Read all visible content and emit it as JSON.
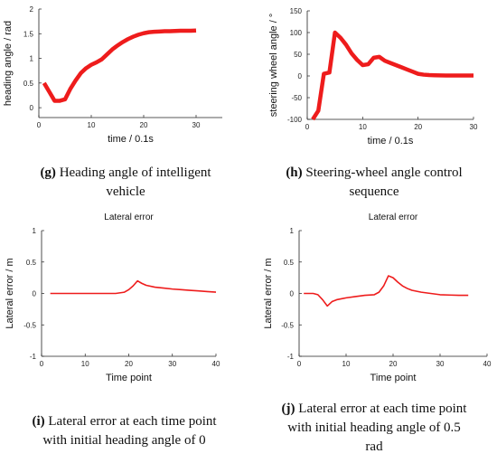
{
  "chart_data": [
    {
      "type": "line",
      "xlabel": "time / 0.1s",
      "ylabel": "heading angle / rad",
      "xlim": [
        0,
        35
      ],
      "ylim": [
        -0.2,
        2
      ],
      "xticks": [
        0,
        10,
        20,
        30
      ],
      "yticks": [
        0,
        0.5,
        1,
        1.5,
        2
      ],
      "grid": false,
      "color": "#ee1c1c",
      "x": [
        1,
        2,
        3,
        4,
        5,
        6,
        7,
        8,
        9,
        10,
        11,
        12,
        13,
        14,
        15,
        16,
        17,
        18,
        19,
        20,
        21,
        22,
        23,
        24,
        25,
        26,
        27,
        28,
        29,
        30
      ],
      "y": [
        0.5,
        0.32,
        0.14,
        0.14,
        0.17,
        0.38,
        0.55,
        0.7,
        0.8,
        0.87,
        0.92,
        0.98,
        1.08,
        1.18,
        1.26,
        1.33,
        1.39,
        1.44,
        1.48,
        1.51,
        1.53,
        1.54,
        1.545,
        1.55,
        1.55,
        1.555,
        1.56,
        1.56,
        1.56,
        1.565
      ]
    },
    {
      "type": "line",
      "xlabel": "time / 0.1s",
      "ylabel": "steering wheel angle / °",
      "xlim": [
        0,
        30
      ],
      "ylim": [
        -100,
        150
      ],
      "xticks": [
        0,
        10,
        20,
        30
      ],
      "yticks": [
        -100,
        -50,
        0,
        50,
        100,
        150
      ],
      "grid": false,
      "color": "#ee1c1c",
      "x": [
        1,
        2,
        3,
        4,
        5,
        6,
        7,
        8,
        9,
        10,
        11,
        12,
        13,
        14,
        15,
        16,
        17,
        18,
        19,
        20,
        21,
        22,
        23,
        24,
        25,
        26,
        27,
        28,
        29,
        30
      ],
      "y": [
        -100,
        -80,
        5,
        8,
        100,
        88,
        72,
        52,
        37,
        25,
        27,
        42,
        44,
        35,
        30,
        25,
        20,
        15,
        10,
        5,
        3,
        2,
        1.5,
        1.2,
        1,
        1,
        1,
        1,
        1,
        1
      ]
    },
    {
      "type": "line",
      "title": "Lateral error",
      "xlabel": "Time point",
      "ylabel": "Lateral error / m",
      "xlim": [
        0,
        40
      ],
      "ylim": [
        -1,
        1
      ],
      "xticks": [
        0,
        10,
        20,
        30,
        40
      ],
      "yticks": [
        -1,
        -0.5,
        0,
        0.5,
        1
      ],
      "grid": false,
      "color": "#ee1c1c",
      "x": [
        2,
        5,
        10,
        15,
        17,
        19,
        20,
        21,
        22,
        23,
        24,
        26,
        28,
        30,
        32,
        34,
        36,
        38,
        40
      ],
      "y": [
        0,
        0,
        0,
        0,
        0,
        0.02,
        0.06,
        0.12,
        0.2,
        0.16,
        0.13,
        0.1,
        0.085,
        0.07,
        0.06,
        0.05,
        0.04,
        0.03,
        0.02
      ]
    },
    {
      "type": "line",
      "title": "Lateral error",
      "xlabel": "Time point",
      "ylabel": "Lateral error / m",
      "xlim": [
        0,
        40
      ],
      "ylim": [
        -1,
        1
      ],
      "xticks": [
        0,
        10,
        20,
        30,
        40
      ],
      "yticks": [
        -1,
        -0.5,
        0,
        0.5,
        1
      ],
      "grid": false,
      "color": "#ee1c1c",
      "x": [
        1,
        2,
        3,
        4,
        5,
        6,
        7,
        8,
        10,
        12,
        14,
        16,
        17,
        18,
        19,
        20,
        21,
        22,
        23,
        24,
        26,
        28,
        30,
        32,
        34,
        36
      ],
      "y": [
        0,
        0,
        0,
        -0.02,
        -0.1,
        -0.2,
        -0.13,
        -0.1,
        -0.07,
        -0.05,
        -0.03,
        -0.02,
        0.02,
        0.12,
        0.28,
        0.25,
        0.18,
        0.12,
        0.08,
        0.05,
        0.02,
        0,
        -0.02,
        -0.025,
        -0.03,
        -0.03
      ]
    }
  ],
  "captions": [
    {
      "letter": "(g)",
      "lines": [
        "Heading angle of intelligent",
        "vehicle"
      ]
    },
    {
      "letter": "(h)",
      "lines": [
        "Steering-wheel angle control",
        "sequence"
      ]
    },
    {
      "letter": "(i)",
      "lines": [
        "Lateral error at each time point",
        "with initial heading angle of 0"
      ]
    },
    {
      "letter": "(j)",
      "lines": [
        "Lateral error at each time point",
        "with initial heading angle of 0.5",
        "rad"
      ]
    }
  ]
}
